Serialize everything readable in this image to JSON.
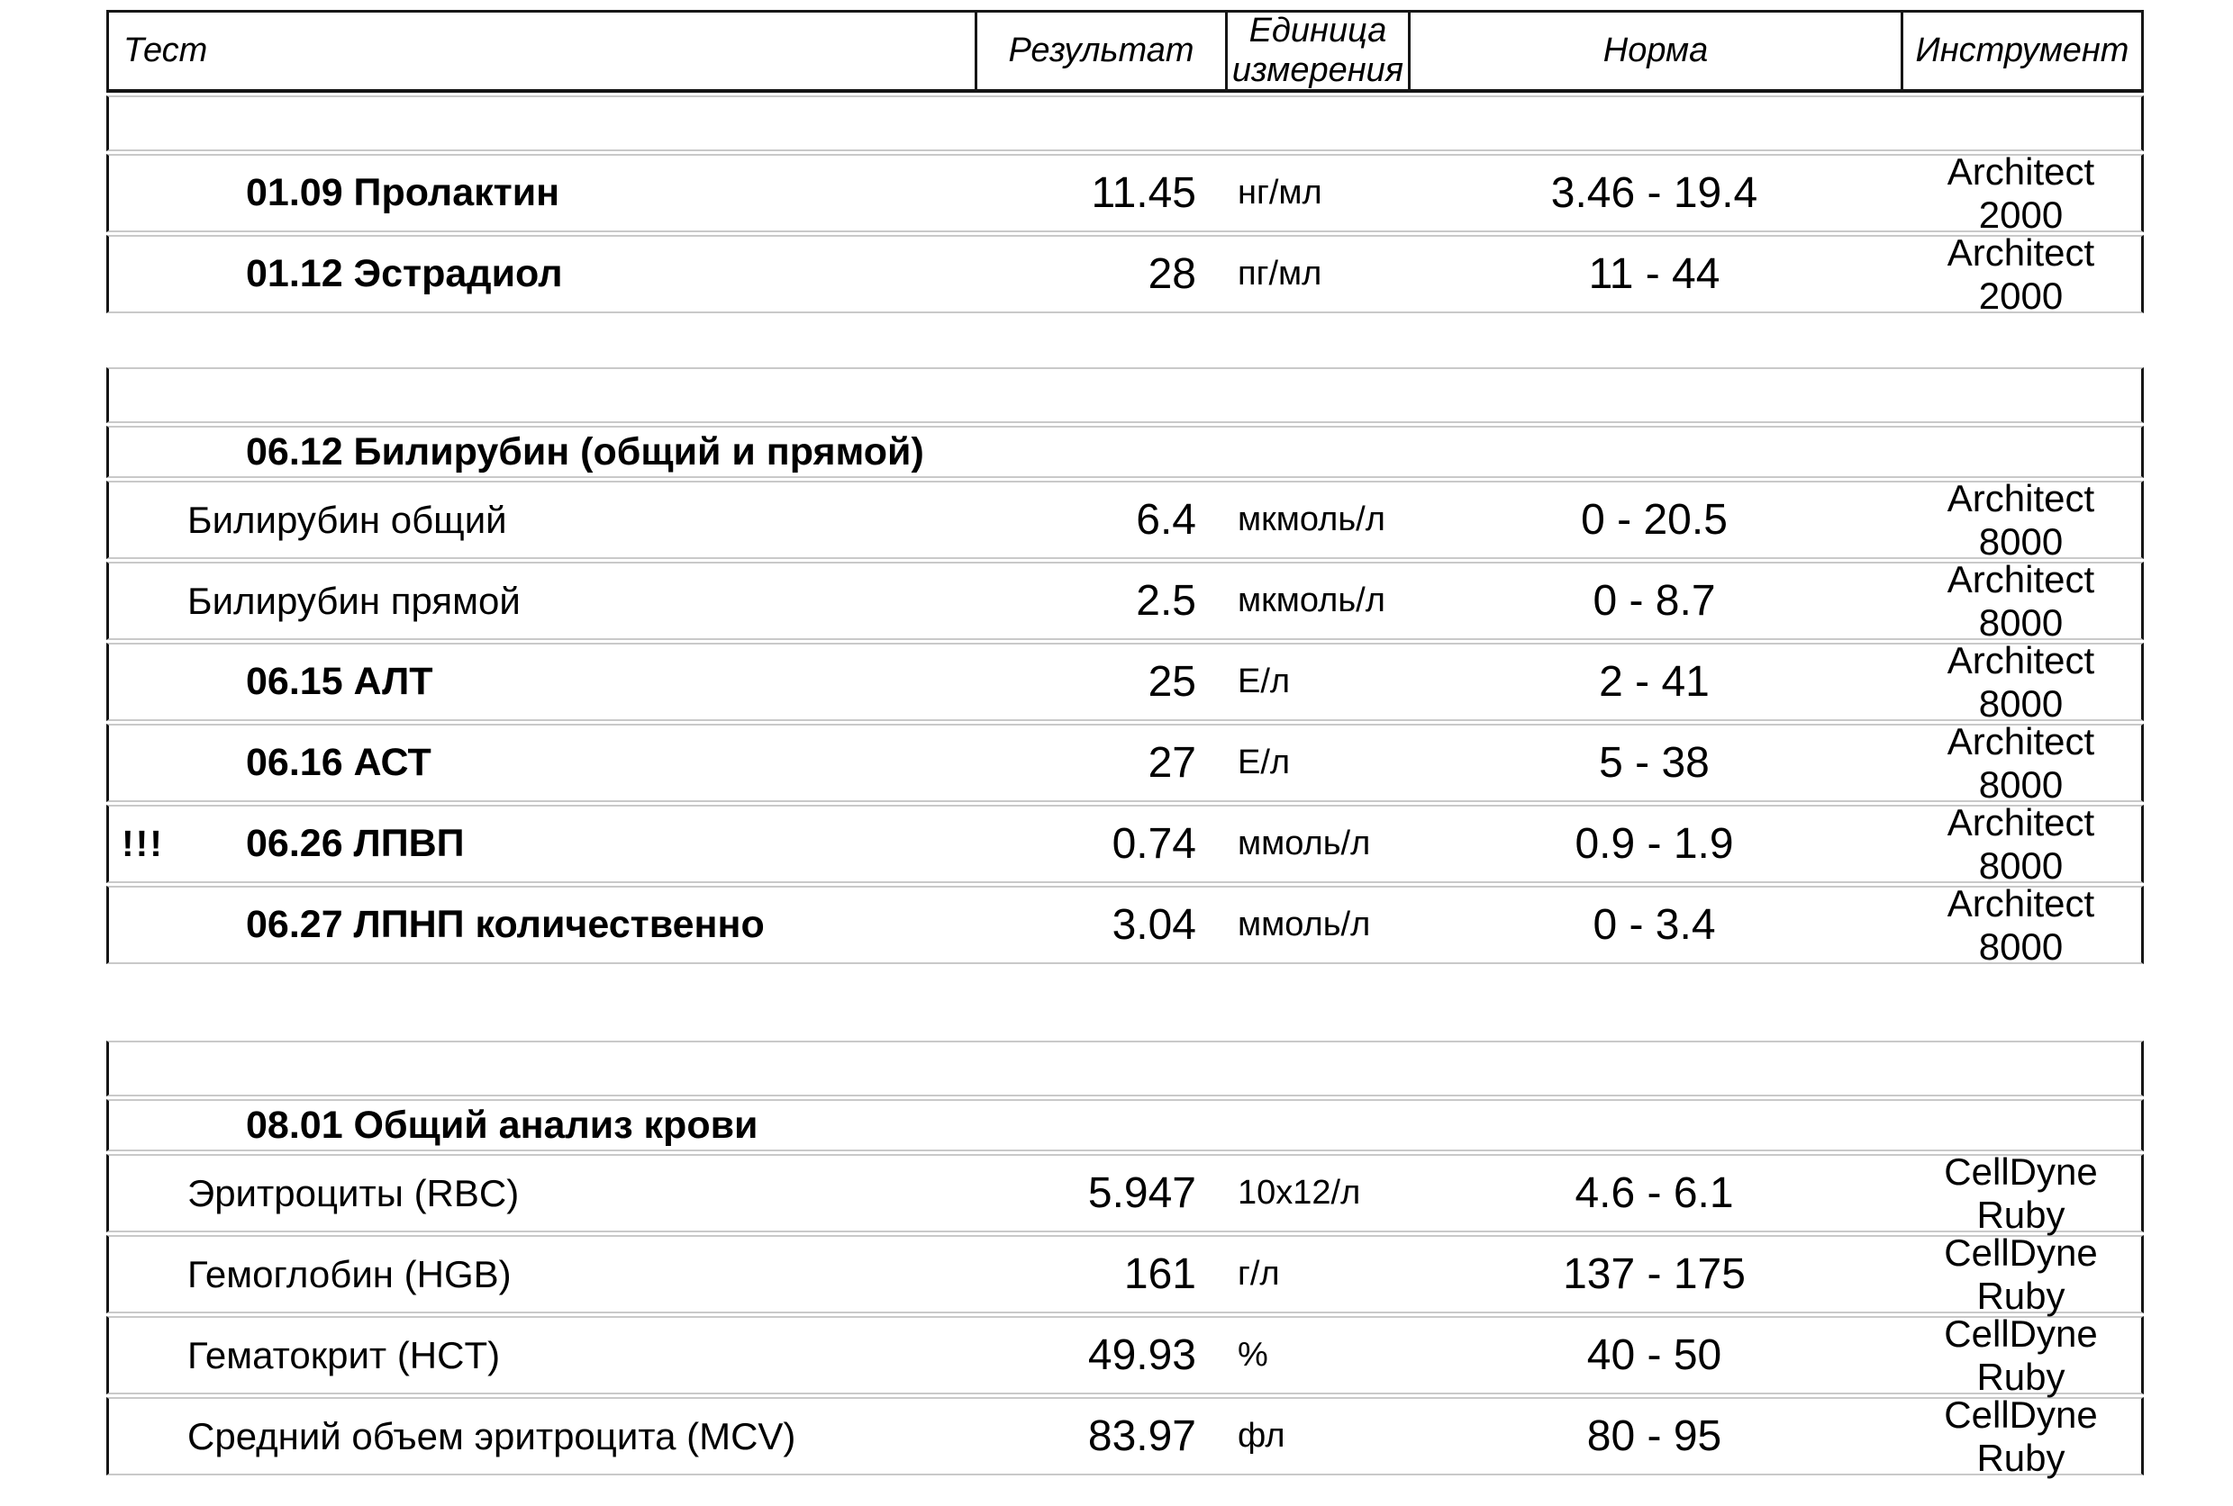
{
  "colors": {
    "border_black": "#161616",
    "separator_gray": "#c9c9c9",
    "background": "#ffffff",
    "text": "#000000"
  },
  "table": {
    "columns": [
      "Тест",
      "Результат",
      "Единица измерения",
      "Норма",
      "Инструмент"
    ],
    "alert_marker": "!!!",
    "blocks": [
      {
        "gap": "none",
        "rows": [
          {
            "type": "empty"
          },
          {
            "type": "test",
            "style": "numbered",
            "marker": "",
            "name": "01.09 Пролактин",
            "result": "11.45",
            "unit": "нг/мл",
            "norm": "3.46 - 19.4",
            "instrument": "Architect 2000"
          },
          {
            "type": "test",
            "style": "numbered",
            "marker": "",
            "name": "01.12 Эстрадиол",
            "result": "28",
            "unit": "пг/мл",
            "norm": "11 - 44",
            "instrument": "Architect 2000"
          }
        ]
      },
      {
        "gap": "md",
        "rows": [
          {
            "type": "empty"
          },
          {
            "type": "section",
            "name": "06.12 Билирубин (общий и прямой)"
          },
          {
            "type": "test",
            "style": "sub",
            "marker": "",
            "name": "Билирубин общий",
            "result": "6.4",
            "unit": "мкмоль/л",
            "norm": "0 - 20.5",
            "instrument": "Architect 8000"
          },
          {
            "type": "test",
            "style": "sub",
            "marker": "",
            "name": "Билирубин прямой",
            "result": "2.5",
            "unit": "мкмоль/л",
            "norm": "0 - 8.7",
            "instrument": "Architect 8000"
          },
          {
            "type": "test",
            "style": "numbered",
            "marker": "",
            "name": "06.15 АЛТ",
            "result": "25",
            "unit": "Е/л",
            "norm": "2 - 41",
            "instrument": "Architect 8000"
          },
          {
            "type": "test",
            "style": "numbered",
            "marker": "",
            "name": "06.16 АСТ",
            "result": "27",
            "unit": "Е/л",
            "norm": "5 - 38",
            "instrument": "Architect 8000"
          },
          {
            "type": "test",
            "style": "numbered",
            "marker": "!!!",
            "name": "06.26 ЛПВП",
            "result": "0.74",
            "unit": "ммоль/л",
            "norm": "0.9 - 1.9",
            "instrument": "Architect 8000"
          },
          {
            "type": "test",
            "style": "numbered",
            "marker": "",
            "name": "06.27 ЛПНП количественно",
            "result": "3.04",
            "unit": "ммоль/л",
            "norm": "0 - 3.4",
            "instrument": "Architect 8000"
          }
        ]
      },
      {
        "gap": "lg",
        "rows": [
          {
            "type": "empty"
          },
          {
            "type": "section",
            "name": "08.01 Общий анализ крови"
          },
          {
            "type": "test",
            "style": "sub",
            "marker": "",
            "name": "Эритроциты (RBC)",
            "result": "5.947",
            "unit": "10x12/л",
            "norm": "4.6 - 6.1",
            "instrument": "CellDyne Ruby"
          },
          {
            "type": "test",
            "style": "sub",
            "marker": "",
            "name": "Гемоглобин (HGB)",
            "result": "161",
            "unit": "г/л",
            "norm": "137 - 175",
            "instrument": "CellDyne Ruby"
          },
          {
            "type": "test",
            "style": "sub",
            "marker": "",
            "name": "Гематокрит (HCT)",
            "result": "49.93",
            "unit": "%",
            "norm": "40 - 50",
            "instrument": "CellDyne Ruby"
          },
          {
            "type": "test",
            "style": "sub",
            "marker": "",
            "name": "Средний объем эритроцита (MCV)",
            "result": "83.97",
            "unit": "фл",
            "norm": "80 - 95",
            "instrument": "CellDyne Ruby"
          }
        ]
      }
    ]
  }
}
